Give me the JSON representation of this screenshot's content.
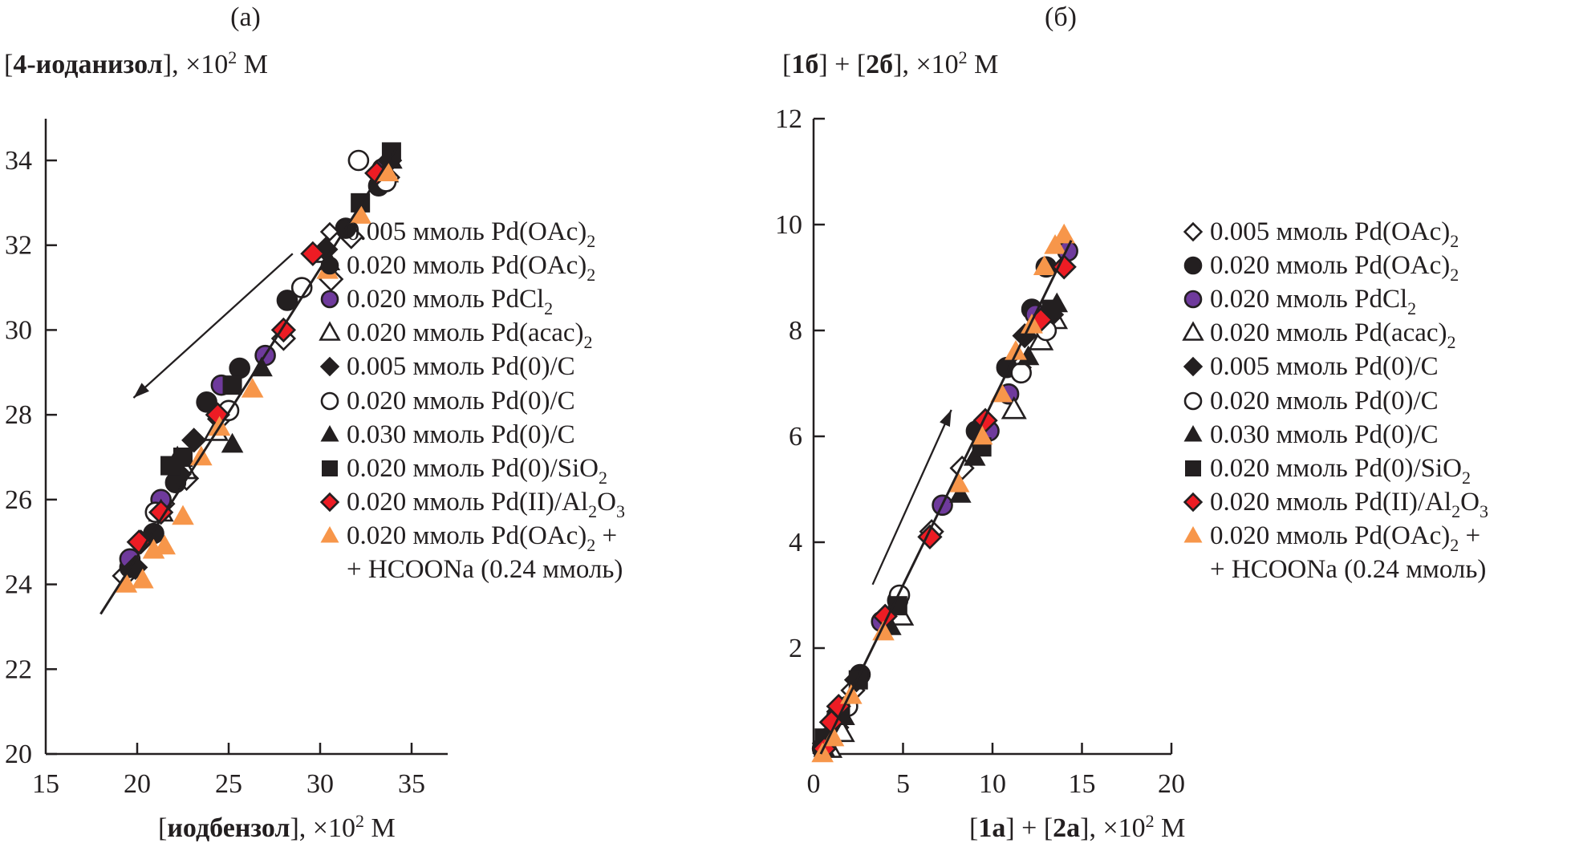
{
  "chart_data": [
    {
      "type": "scatter",
      "panel_label": "(а)",
      "ylabel": {
        "bold": "4-иоданизол",
        "rest": ", ×10",
        "sup": "2",
        "unit": " M"
      },
      "xlabel": {
        "bold": "иодбензол",
        "rest": ", ×10",
        "sup": "2",
        "unit": " M"
      },
      "xlim": [
        15,
        37.5
      ],
      "ylim": [
        20,
        35
      ],
      "xticks": [
        15,
        20,
        25,
        30,
        35
      ],
      "yticks": [
        20,
        22,
        24,
        26,
        28,
        30,
        32,
        34
      ],
      "grid": false,
      "legend_position": "right",
      "trend_line": {
        "x": [
          18.0,
          34.2
        ],
        "y": [
          23.3,
          34.3
        ]
      },
      "arrow": {
        "from": [
          28.5,
          31.8
        ],
        "to": [
          19.8,
          28.4
        ],
        "direction": "down-left"
      },
      "series": [
        {
          "name": "0.005 ммоль Pd(OAc)2",
          "marker": "diamond-open",
          "x": [
            19.3,
            20.2,
            21.4,
            22.7,
            24.5,
            28.0,
            30.6,
            31.7,
            33.7
          ],
          "y": [
            24.2,
            25.0,
            25.9,
            26.5,
            27.9,
            29.8,
            31.2,
            32.2,
            33.6
          ]
        },
        {
          "name": "0.020 ммоль Pd(OAc)2",
          "marker": "circle-filled",
          "x": [
            19.6,
            20.9,
            22.1,
            23.8,
            25.6,
            28.2,
            31.4,
            33.2
          ],
          "y": [
            24.4,
            25.2,
            26.4,
            28.3,
            29.1,
            30.7,
            32.4,
            33.4
          ]
        },
        {
          "name": "0.020 ммоль PdCl2",
          "marker": "circle-purple",
          "x": [
            19.6,
            21.3,
            24.6,
            27.0,
            33.4
          ],
          "y": [
            24.6,
            26.0,
            28.7,
            29.4,
            33.8
          ]
        },
        {
          "name": "0.020 ммоль Pd(acac)2",
          "marker": "triangle-open",
          "x": [
            21.3,
            22.6,
            24.3,
            30.2,
            33.6
          ],
          "y": [
            25.7,
            26.7,
            27.6,
            31.8,
            33.7
          ]
        },
        {
          "name": "0.005 ммоль Pd(0)/C",
          "marker": "diamond-filled",
          "x": [
            19.9,
            22.3,
            23.1,
            30.3,
            33.8
          ],
          "y": [
            24.4,
            26.6,
            27.4,
            31.9,
            34.0
          ]
        },
        {
          "name": "0.020 ммоль Pd(0)/C",
          "marker": "circle-open",
          "x": [
            21.0,
            25.0,
            29.0,
            32.1,
            33.6
          ],
          "y": [
            25.7,
            28.1,
            31.0,
            34.0,
            33.5
          ]
        },
        {
          "name": "0.030 ммоль Pd(0)/C",
          "marker": "triangle-filled",
          "x": [
            22.2,
            25.2,
            26.8,
            30.5,
            33.9
          ],
          "y": [
            27.0,
            27.3,
            29.1,
            31.6,
            34.0
          ]
        },
        {
          "name": "0.020 ммоль Pd(0)/SiO2",
          "marker": "square-filled",
          "x": [
            21.8,
            22.5,
            25.2,
            32.2,
            33.9
          ],
          "y": [
            26.8,
            27.0,
            28.7,
            33.0,
            34.2
          ]
        },
        {
          "name": "0.020 ммоль Pd(II)/Al2O3",
          "marker": "diamond-red",
          "x": [
            20.1,
            21.3,
            24.4,
            28.0,
            29.6,
            33.1
          ],
          "y": [
            25.0,
            25.7,
            28.0,
            30.0,
            31.8,
            33.7
          ]
        },
        {
          "name": "0.020 ммоль Pd(OAc)2 + HCOONa (0.24 ммоль)",
          "marker": "triangle-orange",
          "x": [
            19.4,
            20.3,
            20.9,
            21.5,
            22.5,
            23.5,
            24.5,
            26.3,
            30.4,
            32.2,
            33.7
          ],
          "y": [
            24.0,
            24.1,
            24.8,
            24.9,
            25.6,
            27.0,
            27.7,
            28.6,
            31.4,
            32.7,
            33.7
          ]
        }
      ]
    },
    {
      "type": "scatter",
      "panel_label": "(б)",
      "ylabel": {
        "p1": "[",
        "b1": "1б",
        "p2": "] + [",
        "b2": "2б",
        "rest": "], ×10",
        "sup": "2",
        "unit": " M"
      },
      "xlabel": {
        "p1": "[",
        "b1": "1a",
        "p2": "] + [",
        "b2": "2a",
        "rest": "], ×10",
        "sup": "2",
        "unit": " M"
      },
      "xlim": [
        0,
        20
      ],
      "ylim": [
        0,
        12
      ],
      "xticks": [
        0,
        5,
        10,
        15,
        20
      ],
      "yticks": [
        2,
        4,
        6,
        8,
        10,
        12
      ],
      "grid": false,
      "legend_position": "right",
      "trend_line": {
        "x": [
          0.4,
          14.4
        ],
        "y": [
          0.0,
          9.7
        ]
      },
      "arrow": {
        "from": [
          3.3,
          3.2
        ],
        "to": [
          7.7,
          6.5
        ],
        "direction": "up-right"
      },
      "series": [
        {
          "name": "0.005 ммоль Pd(OAc)2",
          "marker": "diamond-open",
          "x": [
            0.7,
            1.3,
            2.2,
            3.9,
            6.6,
            8.3,
            9.3,
            11.5,
            12.8
          ],
          "y": [
            0.2,
            0.5,
            1.2,
            2.5,
            4.2,
            5.4,
            6.0,
            7.3,
            8.1
          ]
        },
        {
          "name": "0.020 ммоль Pd(OAc)2",
          "marker": "circle-filled",
          "x": [
            0.5,
            1.3,
            2.6,
            4.7,
            9.1,
            10.8,
            12.2,
            13.0
          ],
          "y": [
            0.1,
            0.7,
            1.5,
            2.9,
            6.1,
            7.3,
            8.4,
            9.2
          ]
        },
        {
          "name": "0.020 ммоль PdCl2",
          "marker": "circle-purple",
          "x": [
            0.8,
            1.5,
            3.8,
            7.2,
            9.8,
            10.9,
            12.4,
            14.2
          ],
          "y": [
            0.3,
            0.8,
            2.5,
            4.7,
            6.1,
            6.8,
            8.3,
            9.5
          ]
        },
        {
          "name": "0.020 ммоль Pd(acac)2",
          "marker": "triangle-open",
          "x": [
            0.9,
            1.6,
            4.9,
            11.2,
            12.7,
            13.5
          ],
          "y": [
            0.1,
            0.4,
            2.6,
            6.5,
            7.8,
            8.2
          ]
        },
        {
          "name": "0.005 ммоль Pd(0)/C",
          "marker": "diamond-filled",
          "x": [
            0.6,
            1.4,
            2.4,
            4.0,
            11.8,
            13.3
          ],
          "y": [
            0.2,
            0.8,
            1.4,
            2.6,
            7.9,
            8.3
          ]
        },
        {
          "name": "0.020 ммоль Pd(0)/C",
          "marker": "circle-open",
          "x": [
            0.7,
            1.9,
            4.8,
            11.6,
            13.0
          ],
          "y": [
            0.2,
            0.9,
            3.0,
            7.2,
            8.0
          ]
        },
        {
          "name": "0.030 ммоль Pd(0)/C",
          "marker": "triangle-filled",
          "x": [
            0.6,
            1.7,
            4.3,
            8.2,
            9.0,
            12.0,
            13.6
          ],
          "y": [
            0.1,
            0.7,
            2.4,
            4.9,
            5.6,
            7.5,
            8.5
          ]
        },
        {
          "name": "0.020 ммоль Pd(0)/SiO2",
          "marker": "square-filled",
          "x": [
            0.6,
            1.5,
            2.5,
            4.7,
            9.4,
            13.3
          ],
          "y": [
            0.3,
            0.8,
            1.4,
            2.8,
            5.8,
            8.4
          ]
        },
        {
          "name": "0.020 ммоль Pd(II)/Al2O3",
          "marker": "diamond-red",
          "x": [
            0.6,
            1.0,
            1.4,
            4.0,
            6.5,
            9.6,
            12.7,
            14.0
          ],
          "y": [
            0.1,
            0.6,
            0.9,
            2.6,
            4.1,
            6.3,
            8.2,
            9.2
          ]
        },
        {
          "name": "0.020 ммоль Pd(OAc)2 + HCOONa (0.24 ммоль)",
          "marker": "triangle-orange",
          "x": [
            0.5,
            1.1,
            2.1,
            3.9,
            8.1,
            9.4,
            10.5,
            11.3,
            12.2,
            12.9,
            13.5,
            14.0
          ],
          "y": [
            0.0,
            0.3,
            1.1,
            2.3,
            5.1,
            6.0,
            6.8,
            7.6,
            8.1,
            9.2,
            9.6,
            9.8
          ]
        }
      ]
    }
  ],
  "legend": [
    {
      "marker": "diamond-open",
      "amount": "0.005 ммоль ",
      "chem": "Pd(OAc)",
      "sub": "2",
      "tail": ""
    },
    {
      "marker": "circle-filled",
      "amount": "0.020 ммоль ",
      "chem": "Pd(OAc)",
      "sub": "2",
      "tail": ""
    },
    {
      "marker": "circle-purple",
      "amount": "0.020 ммоль ",
      "chem": "PdCl",
      "sub": "2",
      "tail": ""
    },
    {
      "marker": "triangle-open",
      "amount": "0.020 ммоль ",
      "chem": "Pd(acac)",
      "sub": "2",
      "tail": ""
    },
    {
      "marker": "diamond-filled",
      "amount": "0.005 ммоль ",
      "chem": "Pd(0)/C",
      "sub": "",
      "tail": ""
    },
    {
      "marker": "circle-open",
      "amount": "0.020 ммоль ",
      "chem": "Pd(0)/C",
      "sub": "",
      "tail": ""
    },
    {
      "marker": "triangle-filled",
      "amount": "0.030 ммоль ",
      "chem": "Pd(0)/C",
      "sub": "",
      "tail": ""
    },
    {
      "marker": "square-filled",
      "amount": "0.020 ммоль ",
      "chem": "Pd(0)/SiO",
      "sub": "2",
      "tail": ""
    },
    {
      "marker": "diamond-red",
      "amount": "0.020 ммоль ",
      "chem": "Pd(II)/Al",
      "sub": "2",
      "tail": "O",
      "sub2": "3"
    },
    {
      "marker": "triangle-orange",
      "amount": "0.020 ммоль ",
      "chem": "Pd(OAc)",
      "sub": "2",
      "tail": " +",
      "line2": "+ HCOONa (0.24 ммоль)"
    }
  ],
  "colors": {
    "ink": "#231f20",
    "purple": "#6f3a9c",
    "red": "#ed1c24",
    "orange": "#f7964a",
    "white": "#ffffff"
  }
}
